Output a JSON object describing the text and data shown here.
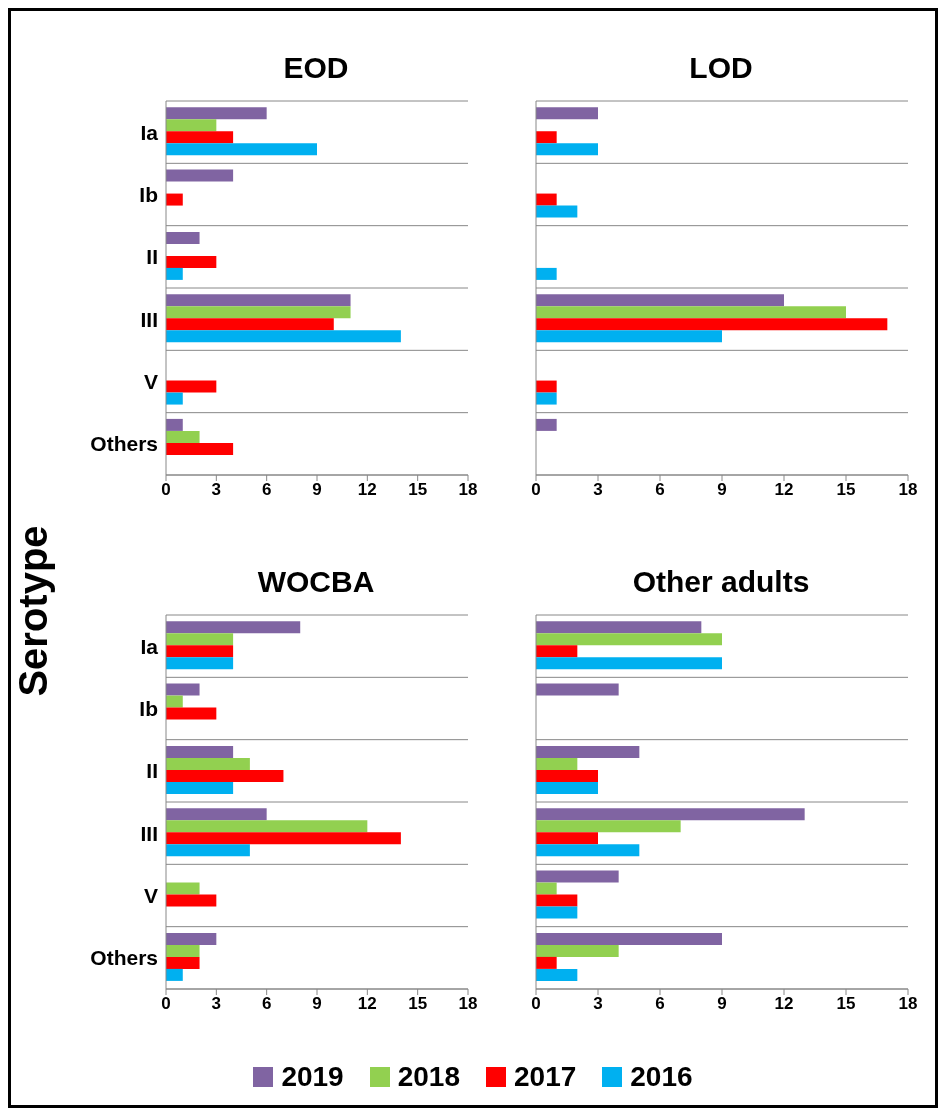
{
  "chart_data": [
    {
      "type": "bar",
      "orientation": "horizontal",
      "title": "EOD",
      "ylabel": "Serotype",
      "categories": [
        "Ia",
        "Ib",
        "II",
        "III",
        "V",
        "Others"
      ],
      "xlim": [
        0,
        18
      ],
      "xticks": [
        0,
        3,
        6,
        9,
        12,
        15,
        18
      ],
      "grid": "y",
      "legend": "bottom",
      "series": [
        {
          "name": "2019",
          "color": "#8064a2",
          "values": [
            6,
            4,
            2,
            11,
            null,
            1
          ]
        },
        {
          "name": "2018",
          "color": "#92d050",
          "values": [
            3,
            null,
            null,
            11,
            null,
            2
          ]
        },
        {
          "name": "2017",
          "color": "#ff0000",
          "values": [
            4,
            1,
            3,
            10,
            3,
            4
          ]
        },
        {
          "name": "2016",
          "color": "#00b0f0",
          "values": [
            9,
            null,
            1,
            14,
            1,
            null
          ]
        }
      ]
    },
    {
      "type": "bar",
      "orientation": "horizontal",
      "title": "LOD",
      "categories": [
        null,
        null,
        null,
        null,
        null,
        null
      ],
      "xlim": [
        0,
        18
      ],
      "xticks": [
        0,
        3,
        6,
        9,
        12,
        15,
        18
      ],
      "grid": "y",
      "series": [
        {
          "name": "2019",
          "color": "#8064a2",
          "values": [
            3,
            null,
            null,
            12,
            null,
            1
          ]
        },
        {
          "name": "2018",
          "color": "#92d050",
          "values": [
            null,
            null,
            null,
            15,
            null,
            null
          ]
        },
        {
          "name": "2017",
          "color": "#ff0000",
          "values": [
            1,
            1,
            null,
            17,
            1,
            null
          ]
        },
        {
          "name": "2016",
          "color": "#00b0f0",
          "values": [
            3,
            2,
            1,
            9,
            1,
            null
          ]
        }
      ]
    },
    {
      "type": "bar",
      "orientation": "horizontal",
      "title": "WOCBA",
      "categories": [
        "Ia",
        "Ib",
        "II",
        "III",
        "V",
        "Others"
      ],
      "xlim": [
        0,
        18
      ],
      "xticks": [
        0,
        3,
        6,
        9,
        12,
        15,
        18
      ],
      "grid": "y",
      "series": [
        {
          "name": "2019",
          "color": "#8064a2",
          "values": [
            8,
            2,
            4,
            6,
            null,
            3
          ]
        },
        {
          "name": "2018",
          "color": "#92d050",
          "values": [
            4,
            1,
            5,
            12,
            2,
            2
          ]
        },
        {
          "name": "2017",
          "color": "#ff0000",
          "values": [
            4,
            3,
            7,
            14,
            3,
            2
          ]
        },
        {
          "name": "2016",
          "color": "#00b0f0",
          "values": [
            4,
            null,
            4,
            5,
            null,
            1
          ]
        }
      ]
    },
    {
      "type": "bar",
      "orientation": "horizontal",
      "title": "Other adults",
      "categories": [
        null,
        null,
        null,
        null,
        null,
        null
      ],
      "xlim": [
        0,
        18
      ],
      "xticks": [
        0,
        3,
        6,
        9,
        12,
        15,
        18
      ],
      "grid": "y",
      "series": [
        {
          "name": "2019",
          "color": "#8064a2",
          "values": [
            8,
            4,
            5,
            13,
            4,
            9
          ]
        },
        {
          "name": "2018",
          "color": "#92d050",
          "values": [
            9,
            null,
            2,
            7,
            1,
            4
          ]
        },
        {
          "name": "2017",
          "color": "#ff0000",
          "values": [
            2,
            null,
            3,
            3,
            2,
            1
          ]
        },
        {
          "name": "2016",
          "color": "#00b0f0",
          "values": [
            9,
            null,
            3,
            5,
            2,
            2
          ]
        }
      ]
    }
  ]
}
